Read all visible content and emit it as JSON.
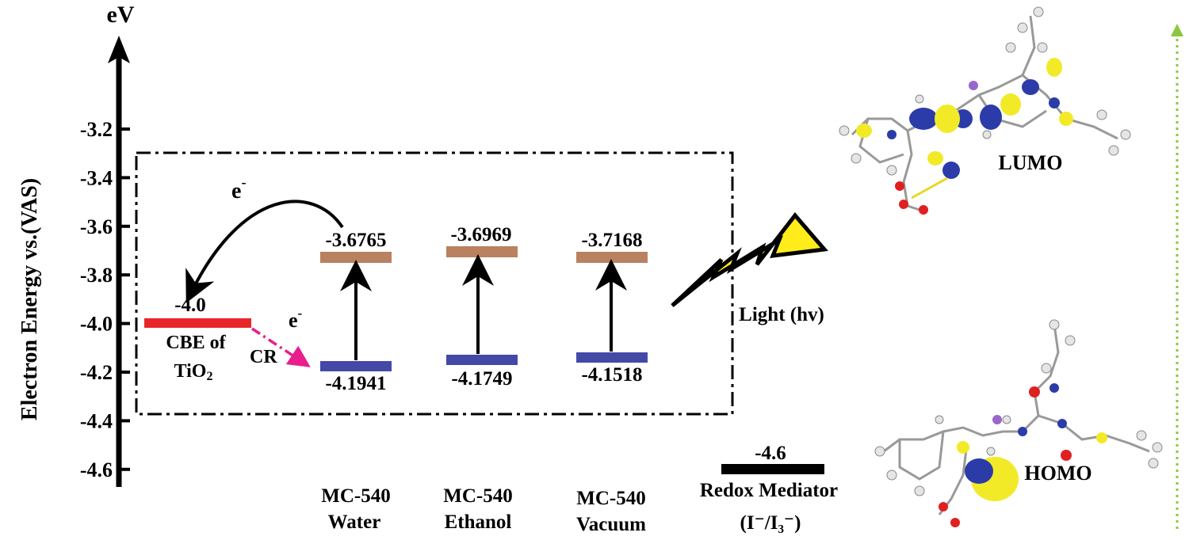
{
  "axis": {
    "unit_label": "eV",
    "title": "Electron Energy vs.(VAS)",
    "ticks": [
      "-3.2",
      "-3.4",
      "-3.6",
      "-3.8",
      "-4.0",
      "-4.2",
      "-4.4",
      "-4.6"
    ]
  },
  "tio2": {
    "value": "-4.0",
    "label_line1": "CBE of",
    "label_line2_prefix": "TiO",
    "label_line2_sub": "2",
    "level_color": "#e8262a"
  },
  "transfer": {
    "injection_label": "e",
    "injection_sup": "-",
    "recombination_electron": "e",
    "recombination_sup": "-",
    "recombination_label": "CR",
    "recombination_color": "#e91e8c"
  },
  "levels": [
    {
      "lumo": "-3.6765",
      "homo": "-4.1941",
      "name_line1": "MC-540",
      "name_line2": "Water"
    },
    {
      "lumo": "-3.6969",
      "homo": "-4.1749",
      "name_line1": "MC-540",
      "name_line2": "Ethanol"
    },
    {
      "lumo": "-3.7168",
      "homo": "-4.1518",
      "name_line1": "MC-540",
      "name_line2": "Vacuum"
    }
  ],
  "level_colors": {
    "lumo": "#b9815f",
    "homo": "#4449a8"
  },
  "light": {
    "label": "Light (hv)",
    "bolt_color": "#ffec1a"
  },
  "redox": {
    "value": "-4.6",
    "label_line1": "Redox Mediator",
    "label_line2": "(I⁻/I₃⁻)"
  },
  "orbitals": {
    "lumo_label": "LUMO",
    "homo_label": "HOMO"
  },
  "accent_arrow_color": "#8cc63f"
}
